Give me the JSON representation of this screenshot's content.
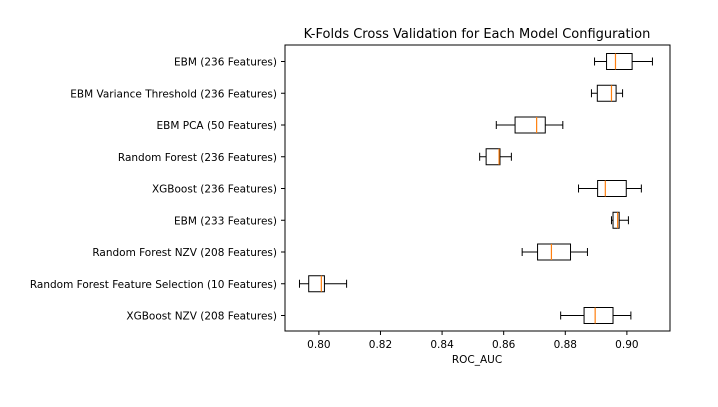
{
  "chart_data": {
    "type": "boxplot",
    "orientation": "horizontal",
    "title": "K-Folds Cross Validation for Each Model Configuration",
    "xlabel": "ROC_AUC",
    "ylabel": "",
    "xlim": [
      0.789,
      0.914
    ],
    "xticks": [
      "0.80",
      "0.82",
      "0.84",
      "0.86",
      "0.88",
      "0.90"
    ],
    "categories": [
      "EBM (236 Features)",
      "EBM Variance Threshold (236 Features)",
      "EBM PCA (50 Features)",
      "Random Forest (236 Features)",
      "XGBoost (236 Features)",
      "EBM (233 Features)",
      "Random Forest NZV (208 Features)",
      "Random Forest Feature Selection (10 Features)",
      "XGBoost NZV (208 Features)"
    ],
    "boxes": [
      {
        "whislo": 0.8895,
        "q1": 0.8934,
        "med": 0.8963,
        "q3": 0.9017,
        "whishi": 0.9083
      },
      {
        "whislo": 0.8885,
        "q1": 0.8904,
        "med": 0.895,
        "q3": 0.8965,
        "whishi": 0.8986
      },
      {
        "whislo": 0.8576,
        "q1": 0.8637,
        "med": 0.8707,
        "q3": 0.8735,
        "whishi": 0.8792
      },
      {
        "whislo": 0.8522,
        "q1": 0.8543,
        "med": 0.8585,
        "q3": 0.8588,
        "whishi": 0.8625
      },
      {
        "whislo": 0.8843,
        "q1": 0.8905,
        "med": 0.893,
        "q3": 0.8998,
        "whishi": 0.9047
      },
      {
        "whislo": 0.895,
        "q1": 0.8955,
        "med": 0.897,
        "q3": 0.8975,
        "whishi": 0.9005
      },
      {
        "whislo": 0.866,
        "q1": 0.871,
        "med": 0.8755,
        "q3": 0.8817,
        "whishi": 0.8872
      },
      {
        "whislo": 0.7937,
        "q1": 0.7967,
        "med": 0.8008,
        "q3": 0.8018,
        "whishi": 0.809
      },
      {
        "whislo": 0.8785,
        "q1": 0.8861,
        "med": 0.8897,
        "q3": 0.8955,
        "whishi": 0.9013
      }
    ],
    "colors": {
      "box": "#000000",
      "median": "#ff7f0e"
    },
    "grid": false,
    "legend": "none"
  }
}
